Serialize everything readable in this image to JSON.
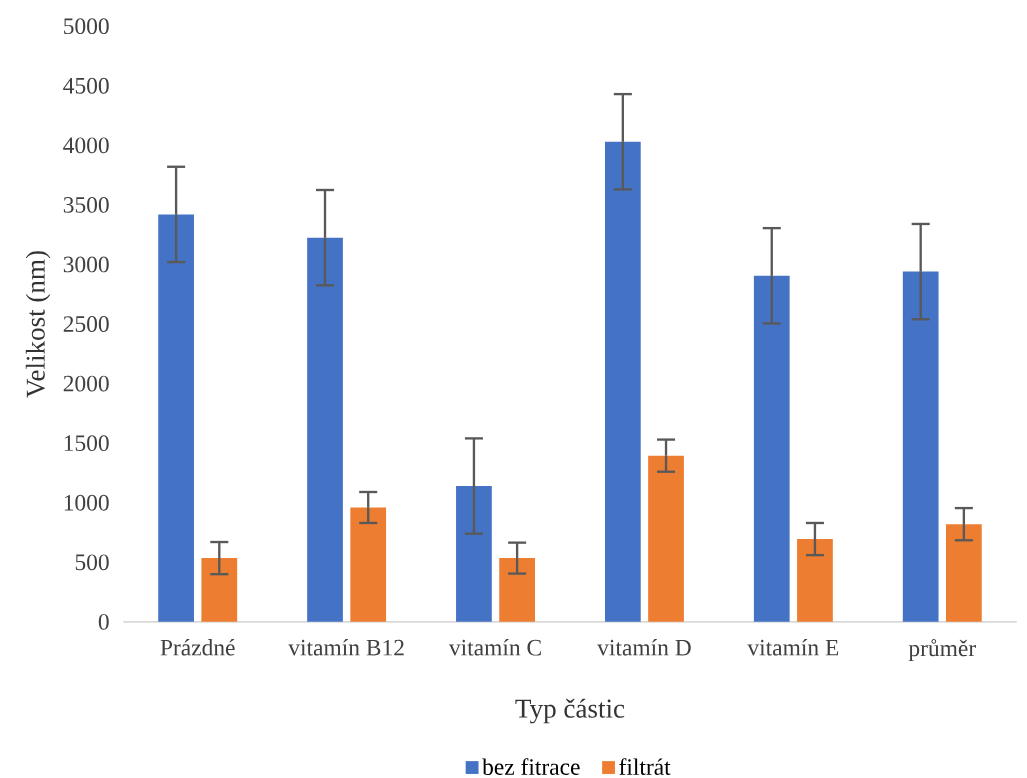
{
  "chart_data": {
    "type": "bar",
    "xlabel": "Typ částic",
    "ylabel": "Velikost (nm)",
    "categories": [
      "Prázdné",
      "vitamín B12",
      "vitamín C",
      "vitamín D",
      "vitamín E",
      "průměr"
    ],
    "series": [
      {
        "name": "bez fitrace",
        "color": "#4472c4",
        "values": [
          3420,
          3225,
          1140,
          4030,
          2905,
          2940
        ],
        "errors": [
          400,
          400,
          400,
          400,
          400,
          400
        ]
      },
      {
        "name": "filtrát",
        "color": "#ed7d31",
        "values": [
          535,
          960,
          535,
          1395,
          695,
          820
        ],
        "errors": [
          135,
          130,
          130,
          135,
          135,
          135
        ]
      }
    ],
    "ylim": [
      0,
      5000
    ],
    "yticks": [
      0,
      500,
      1000,
      1500,
      2000,
      2500,
      3000,
      3500,
      4000,
      4500,
      5000
    ],
    "legend": "bottom"
  }
}
